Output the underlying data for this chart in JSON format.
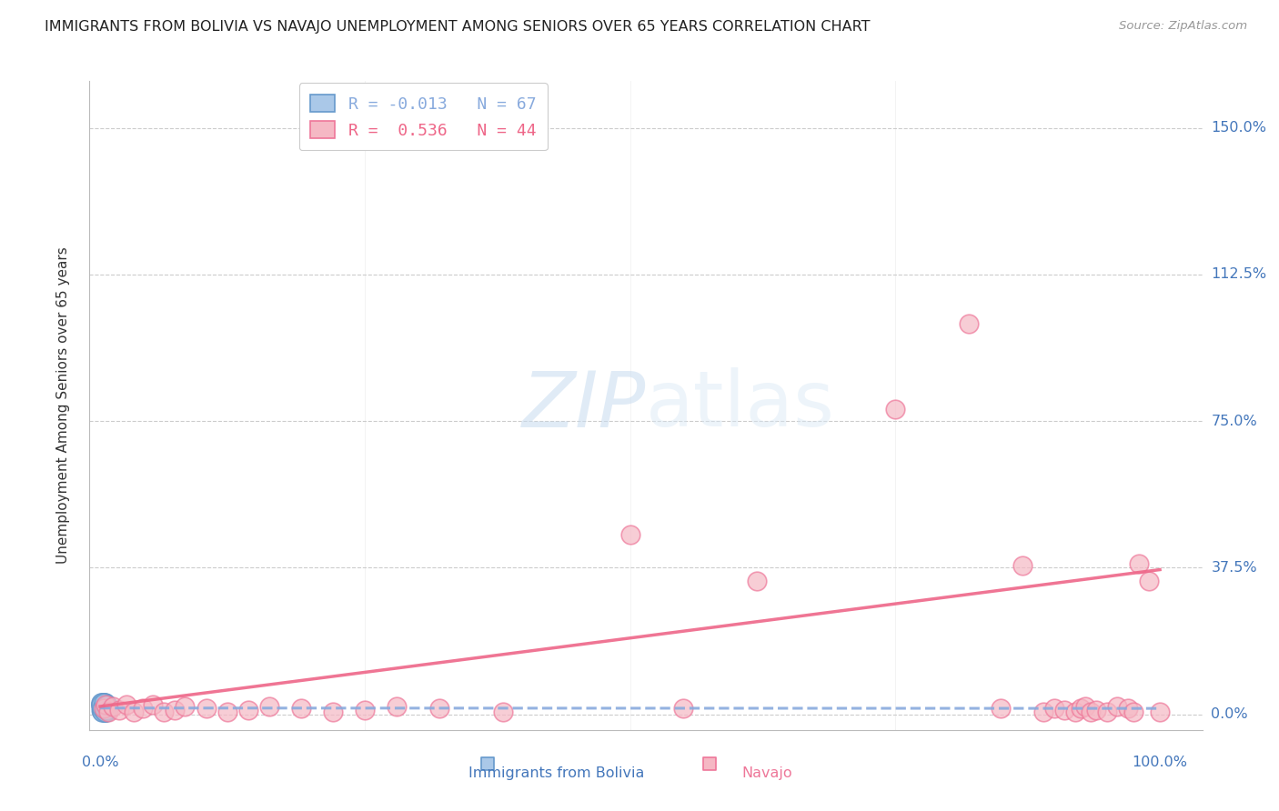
{
  "title": "IMMIGRANTS FROM BOLIVIA VS NAVAJO UNEMPLOYMENT AMONG SENIORS OVER 65 YEARS CORRELATION CHART",
  "source": "Source: ZipAtlas.com",
  "ylabel": "Unemployment Among Seniors over 65 years",
  "ytick_labels": [
    "0.0%",
    "37.5%",
    "75.0%",
    "112.5%",
    "150.0%"
  ],
  "ytick_values": [
    0.0,
    0.375,
    0.75,
    1.125,
    1.5
  ],
  "xlim": [
    -0.01,
    1.04
  ],
  "ylim": [
    -0.04,
    1.62
  ],
  "color_blue_fill": "#aac8e8",
  "color_blue_edge": "#6699CC",
  "color_pink_fill": "#f5b8c4",
  "color_pink_edge": "#ee7799",
  "color_trend_blue": "#88aadd",
  "color_trend_pink": "#ee6688",
  "color_labels": "#4477BB",
  "bolivia_x": [
    0.001,
    0.002,
    0.002,
    0.003,
    0.003,
    0.003,
    0.004,
    0.004,
    0.005,
    0.005,
    0.001,
    0.002,
    0.002,
    0.003,
    0.003,
    0.004,
    0.004,
    0.005,
    0.005,
    0.006,
    0.001,
    0.002,
    0.002,
    0.003,
    0.003,
    0.004,
    0.004,
    0.005,
    0.005,
    0.006,
    0.001,
    0.002,
    0.002,
    0.003,
    0.003,
    0.004,
    0.004,
    0.005,
    0.005,
    0.006,
    0.001,
    0.002,
    0.002,
    0.003,
    0.003,
    0.004,
    0.004,
    0.005,
    0.005,
    0.006,
    0.001,
    0.002,
    0.002,
    0.003,
    0.003,
    0.004,
    0.004,
    0.005,
    0.005,
    0.006,
    0.001,
    0.002,
    0.003,
    0.004,
    0.005,
    0.006,
    0.007
  ],
  "bolivia_y": [
    0.025,
    0.015,
    0.03,
    0.01,
    0.02,
    0.03,
    0.005,
    0.025,
    0.015,
    0.02,
    0.01,
    0.025,
    0.02,
    0.015,
    0.03,
    0.005,
    0.02,
    0.01,
    0.025,
    0.015,
    0.03,
    0.005,
    0.02,
    0.01,
    0.025,
    0.015,
    0.03,
    0.005,
    0.02,
    0.01,
    0.025,
    0.015,
    0.03,
    0.005,
    0.02,
    0.01,
    0.025,
    0.015,
    0.03,
    0.005,
    0.02,
    0.01,
    0.025,
    0.015,
    0.03,
    0.005,
    0.02,
    0.01,
    0.025,
    0.015,
    0.03,
    0.005,
    0.02,
    0.01,
    0.025,
    0.015,
    0.03,
    0.005,
    0.02,
    0.01,
    0.025,
    0.015,
    0.03,
    0.005,
    0.02,
    0.01,
    0.025
  ],
  "navajo_x": [
    0.003,
    0.005,
    0.008,
    0.012,
    0.018,
    0.025,
    0.032,
    0.04,
    0.05,
    0.06,
    0.07,
    0.08,
    0.1,
    0.12,
    0.14,
    0.16,
    0.19,
    0.22,
    0.25,
    0.28,
    0.32,
    0.38,
    0.5,
    0.55,
    0.62,
    0.75,
    0.82,
    0.85,
    0.87,
    0.89,
    0.9,
    0.91,
    0.92,
    0.925,
    0.93,
    0.935,
    0.94,
    0.95,
    0.96,
    0.97,
    0.975,
    0.98,
    0.99,
    1.0
  ],
  "navajo_y": [
    0.015,
    0.025,
    0.005,
    0.02,
    0.01,
    0.025,
    0.005,
    0.015,
    0.025,
    0.005,
    0.01,
    0.02,
    0.015,
    0.005,
    0.01,
    0.02,
    0.015,
    0.005,
    0.01,
    0.02,
    0.015,
    0.005,
    0.46,
    0.015,
    0.34,
    0.78,
    1.0,
    0.015,
    0.38,
    0.005,
    0.015,
    0.01,
    0.005,
    0.015,
    0.02,
    0.005,
    0.01,
    0.005,
    0.02,
    0.015,
    0.005,
    0.385,
    0.34,
    0.005
  ],
  "bolivia_trend_x": [
    0.0,
    1.0
  ],
  "bolivia_trend_y": [
    0.016,
    0.015
  ],
  "navajo_trend_x": [
    0.0,
    1.0
  ],
  "navajo_trend_y": [
    0.02,
    0.37
  ]
}
